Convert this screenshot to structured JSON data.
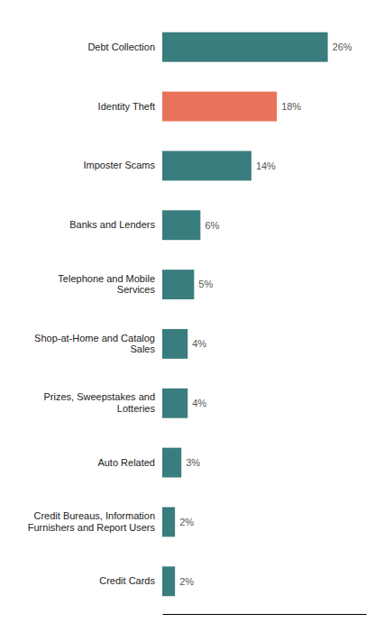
{
  "chart_data": {
    "type": "bar",
    "orientation": "horizontal",
    "categories": [
      "Credit Cards",
      "Credit Bureaus, Information\nFurnishers and Report Users",
      "Auto Related",
      "Prizes, Sweepstakes and\nLotteries",
      "Shop-at-Home and Catalog\nSales",
      "Telephone and Mobile\nServices",
      "Banks and Lenders",
      "Imposter Scams",
      "Identity Theft",
      "Debt Collection"
    ],
    "values": [
      2,
      2,
      3,
      4,
      4,
      5,
      6,
      14,
      18,
      26
    ],
    "value_labels": [
      "2%",
      "2%",
      "3%",
      "4%",
      "4%",
      "5%",
      "6%",
      "14%",
      "18%",
      "26%"
    ],
    "colors": [
      "#3a7d7e",
      "#3a7d7e",
      "#3a7d7e",
      "#3a7d7e",
      "#3a7d7e",
      "#3a7d7e",
      "#3a7d7e",
      "#3a7d7e",
      "#e8735a",
      "#3a7d7e"
    ],
    "xlim": [
      0,
      32
    ],
    "data_labels": true,
    "tick_labels": "y",
    "grid": false
  }
}
